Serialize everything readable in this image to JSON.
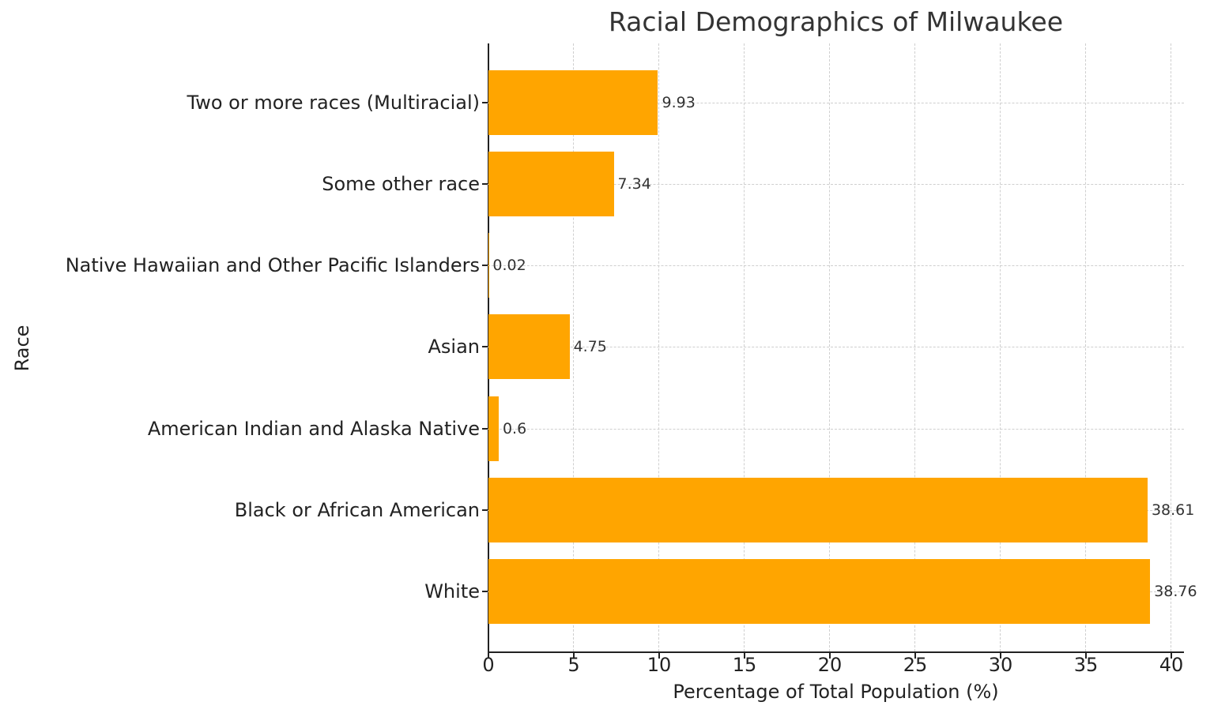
{
  "chart_data": {
    "type": "bar",
    "orientation": "horizontal",
    "title": "Racial Demographics of Milwaukee",
    "xlabel": "Percentage of Total Population (%)",
    "ylabel": "Race",
    "categories": [
      "White",
      "Black or African American",
      "American Indian and Alaska Native",
      "Asian",
      "Native Hawaiian and Other Pacific Islanders",
      "Some other race",
      "Two or more races (Multiracial)"
    ],
    "values": [
      38.76,
      38.61,
      0.6,
      4.75,
      0.02,
      7.34,
      9.93
    ],
    "value_labels": [
      "38.76",
      "38.61",
      "0.6",
      "4.75",
      "0.02",
      "7.34",
      "9.93"
    ],
    "xlim": [
      0,
      40.8
    ],
    "xticks": [
      "0",
      "5",
      "10",
      "15",
      "20",
      "25",
      "30",
      "35",
      "40"
    ],
    "grid": true,
    "grid_style": "dashed",
    "bar_color": "#ffa500",
    "legend": null
  }
}
